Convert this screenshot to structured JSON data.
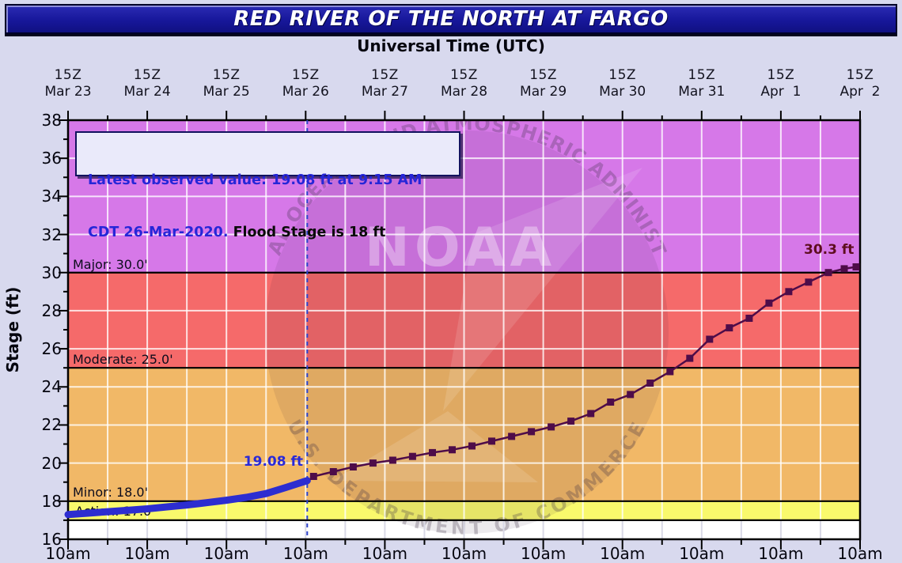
{
  "header": {
    "title": "RED RIVER OF THE NORTH AT FARGO",
    "top_axis_title": "Universal Time (UTC)"
  },
  "y_axis": {
    "label": "Stage (ft)",
    "tick_labels": [
      "38",
      "36",
      "34",
      "32",
      "30",
      "28",
      "26",
      "24",
      "22",
      "20",
      "18",
      "16"
    ]
  },
  "x_axis": {
    "top_hour_label": "15Z",
    "days": [
      "Mar 23",
      "Mar 24",
      "Mar 25",
      "Mar 26",
      "Mar 27",
      "Mar 28",
      "Mar 29",
      "Mar 30",
      "Mar 31",
      "Apr  1",
      "Apr  2"
    ],
    "bottom_hour_label": "10am"
  },
  "legend_box": {
    "line1": "Latest observed value: 19.08 ft at 9:15 AM",
    "line2_blue": "CDT 26-Mar-2020.",
    "line2_black": " Flood Stage is 18 ft"
  },
  "flood_labels": {
    "major": "Major: 30.0'",
    "moderate": "Moderate: 25.0'",
    "minor": "Minor: 18.0'",
    "action": "Action: 17.0'"
  },
  "annotations": {
    "observed_peak": "19.08 ft",
    "forecast_peak": "30.3 ft"
  },
  "watermark": {
    "org": "NOAA",
    "ring_top": "NATIONAL OCEANIC AND ATMOSPHERIC ADMINISTRATION",
    "ring_bottom": "U.S. DEPARTMENT OF COMMERCE"
  },
  "chart_data": {
    "type": "line",
    "title": "RED RIVER OF THE NORTH AT FARGO",
    "xlabel_top": "Universal Time (UTC)",
    "ylabel": "Stage (ft)",
    "ylim": [
      16,
      38
    ],
    "y_major_step": 2,
    "x_unit": "days since Mar 23 15Z (top ticks 15Z UTC, bottom ticks 10am CDT)",
    "xlim_days": [
      0,
      10
    ],
    "grid": "white 12-hour vertical and 2-ft horizontal gridlines",
    "current_time_line_days": 3.02,
    "flood_stages": {
      "action": 17.0,
      "minor": 18.0,
      "moderate": 25.0,
      "major": 30.0
    },
    "bands": [
      {
        "name": "above-major",
        "lo": 30,
        "hi": 38,
        "color": "#d678e8"
      },
      {
        "name": "moderate-band",
        "lo": 25,
        "hi": 30,
        "color": "#f56a6a"
      },
      {
        "name": "minor-band",
        "lo": 18,
        "hi": 25,
        "color": "#f1b867"
      },
      {
        "name": "action-band",
        "lo": 17,
        "hi": 18,
        "color": "#f9f96c"
      },
      {
        "name": "normal-band",
        "lo": 16,
        "hi": 17,
        "color": "#ffffff"
      }
    ],
    "series": [
      {
        "name": "observed",
        "style": "thick solid line",
        "color": "#2d2dd0",
        "points": [
          [
            0,
            17.3
          ],
          [
            0.25,
            17.37
          ],
          [
            0.5,
            17.45
          ],
          [
            0.75,
            17.52
          ],
          [
            1,
            17.6
          ],
          [
            1.25,
            17.7
          ],
          [
            1.5,
            17.8
          ],
          [
            1.75,
            17.92
          ],
          [
            2,
            18.05
          ],
          [
            2.25,
            18.2
          ],
          [
            2.5,
            18.4
          ],
          [
            2.75,
            18.72
          ],
          [
            3.02,
            19.08
          ]
        ]
      },
      {
        "name": "forecast",
        "style": "thin line with square markers",
        "color": "#4e0c49",
        "points": [
          [
            3.1,
            19.3
          ],
          [
            3.35,
            19.55
          ],
          [
            3.6,
            19.8
          ],
          [
            3.85,
            20.0
          ],
          [
            4.1,
            20.15
          ],
          [
            4.35,
            20.35
          ],
          [
            4.6,
            20.55
          ],
          [
            4.85,
            20.7
          ],
          [
            5.1,
            20.9
          ],
          [
            5.35,
            21.15
          ],
          [
            5.6,
            21.4
          ],
          [
            5.85,
            21.65
          ],
          [
            6.1,
            21.9
          ],
          [
            6.35,
            22.2
          ],
          [
            6.6,
            22.6
          ],
          [
            6.85,
            23.2
          ],
          [
            7.1,
            23.6
          ],
          [
            7.35,
            24.2
          ],
          [
            7.6,
            24.8
          ],
          [
            7.85,
            25.5
          ],
          [
            8.1,
            26.5
          ],
          [
            8.35,
            27.1
          ],
          [
            8.6,
            27.6
          ],
          [
            8.85,
            28.4
          ],
          [
            9.1,
            29.0
          ],
          [
            9.35,
            29.5
          ],
          [
            9.6,
            30.0
          ],
          [
            9.8,
            30.2
          ],
          [
            9.95,
            30.3
          ]
        ]
      }
    ],
    "colors": {
      "dashed_now_line": "#2e44cc",
      "gridline": "#ffffff",
      "flood_line": "#000000",
      "axis": "#000000",
      "title_bar_bg": "#17179a",
      "page_bg": "#d8d9ee"
    }
  }
}
